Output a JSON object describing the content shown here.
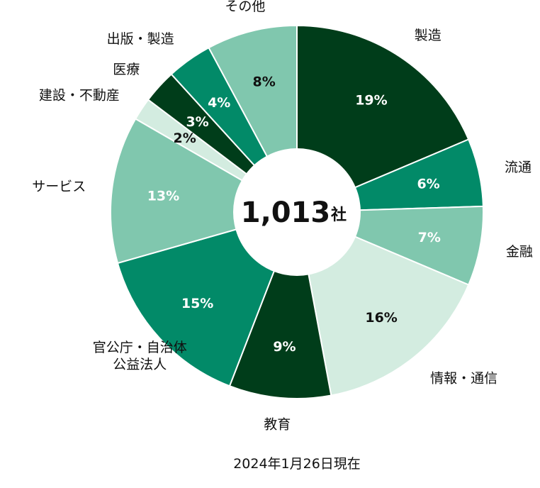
{
  "chart_data": {
    "type": "pie",
    "donut": true,
    "center_value": "1,013",
    "center_unit": "社",
    "note": "2024年1月26日現在",
    "slices": [
      {
        "label": "製造",
        "label_lines": [
          "製造"
        ],
        "value": 19,
        "pct": "19%",
        "color": "#003d1a",
        "text_color": "#ffffff"
      },
      {
        "label": "流通",
        "label_lines": [
          "流通"
        ],
        "value": 6,
        "pct": "6%",
        "color": "#028a68",
        "text_color": "#ffffff"
      },
      {
        "label": "金融",
        "label_lines": [
          "金融"
        ],
        "value": 7,
        "pct": "7%",
        "color": "#80c7ae",
        "text_color": "#ffffff"
      },
      {
        "label": "情報・通信",
        "label_lines": [
          "情報・通信"
        ],
        "value": 16,
        "pct": "16%",
        "color": "#d3ece0",
        "text_color": "#111111"
      },
      {
        "label": "教育",
        "label_lines": [
          "教育"
        ],
        "value": 9,
        "pct": "9%",
        "color": "#003d1a",
        "text_color": "#ffffff"
      },
      {
        "label": "官公庁・自治体公益法人",
        "label_lines": [
          "官公庁・自治体",
          "公益法人"
        ],
        "value": 15,
        "pct": "15%",
        "color": "#028a68",
        "text_color": "#ffffff"
      },
      {
        "label": "サービス",
        "label_lines": [
          "サービス"
        ],
        "value": 13,
        "pct": "13%",
        "color": "#80c7ae",
        "text_color": "#ffffff"
      },
      {
        "label": "建設・不動産",
        "label_lines": [
          "建設・不動産"
        ],
        "value": 2,
        "pct": "2%",
        "color": "#d3ece0",
        "text_color": "#111111"
      },
      {
        "label": "医療",
        "label_lines": [
          "医療"
        ],
        "value": 3,
        "pct": "3%",
        "color": "#003d1a",
        "text_color": "#ffffff"
      },
      {
        "label": "出版・製造",
        "label_lines": [
          "出版・製造"
        ],
        "value": 4,
        "pct": "4%",
        "color": "#028a68",
        "text_color": "#ffffff"
      },
      {
        "label": "その他",
        "label_lines": [
          "その他"
        ],
        "value": 8,
        "pct": "8%",
        "color": "#80c7ae",
        "text_color": "#111111"
      }
    ]
  }
}
